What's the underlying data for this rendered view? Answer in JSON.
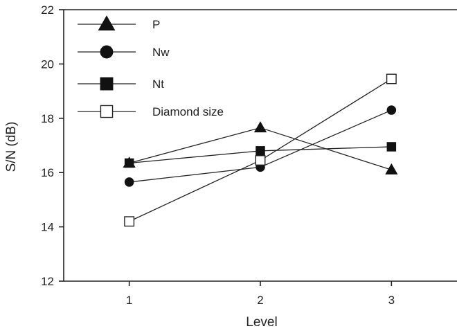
{
  "chart_data": {
    "type": "line",
    "title": "",
    "xlabel": "Level",
    "ylabel": "S/N (dB)",
    "x": [
      1,
      2,
      3
    ],
    "x_tick_labels": [
      "1",
      "2",
      "3"
    ],
    "xlim": [
      0.5,
      3.5
    ],
    "ylim": [
      12,
      22
    ],
    "y_ticks": [
      12,
      14,
      16,
      18,
      20,
      22
    ],
    "grid": false,
    "legend_position": "top-left",
    "series": [
      {
        "name": "P",
        "marker": "filled-triangle",
        "values": [
          16.35,
          17.65,
          16.1
        ]
      },
      {
        "name": "Nw",
        "marker": "filled-circle",
        "values": [
          15.65,
          16.2,
          18.3
        ]
      },
      {
        "name": "Nt",
        "marker": "filled-square",
        "values": [
          16.35,
          16.8,
          16.95
        ]
      },
      {
        "name": "Diamond size",
        "marker": "open-square",
        "values": [
          14.2,
          16.45,
          19.45
        ]
      }
    ],
    "colors": {
      "line": "#222222",
      "axis": "#222222",
      "fill": "#111111",
      "open_fill": "#ffffff"
    }
  }
}
